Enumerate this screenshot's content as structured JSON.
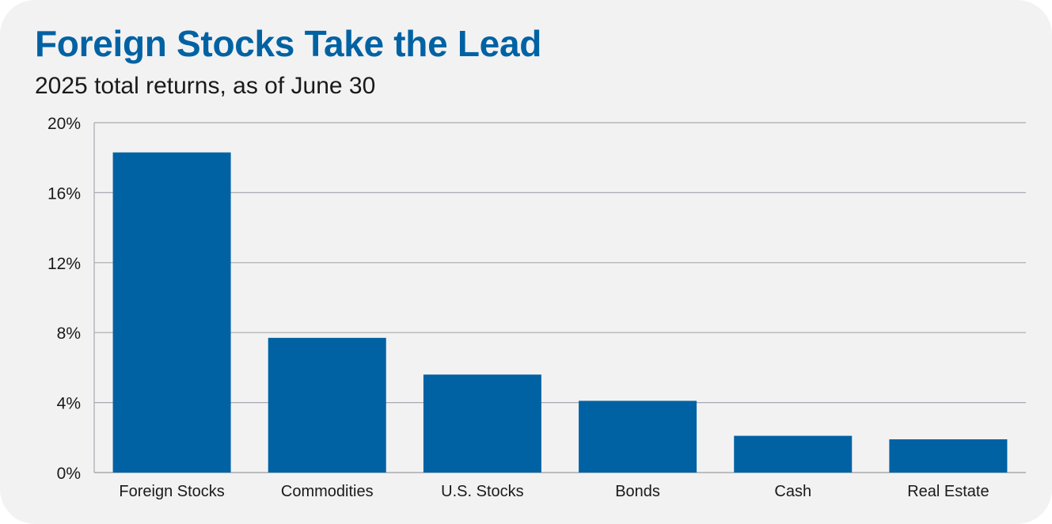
{
  "title": "Foreign Stocks Take the Lead",
  "subtitle": "2025 total returns, as of June 30",
  "colors": {
    "background": "#f2f2f3",
    "bar": "#0062a3",
    "title": "#0062a3",
    "grid": "#a9a9b0"
  },
  "chart_data": {
    "type": "bar",
    "title": "Foreign Stocks Take the Lead",
    "subtitle": "2025 total returns, as of June 30",
    "categories": [
      "Foreign Stocks",
      "Commodities",
      "U.S. Stocks",
      "Bonds",
      "Cash",
      "Real Estate"
    ],
    "values": [
      18.3,
      7.7,
      5.6,
      4.1,
      2.1,
      1.9
    ],
    "ylim": [
      0,
      20
    ],
    "yticks": [
      0,
      4,
      8,
      12,
      16,
      20
    ],
    "ytick_labels": [
      "0%",
      "4%",
      "8%",
      "12%",
      "16%",
      "20%"
    ],
    "grid": true,
    "legend": "none"
  }
}
